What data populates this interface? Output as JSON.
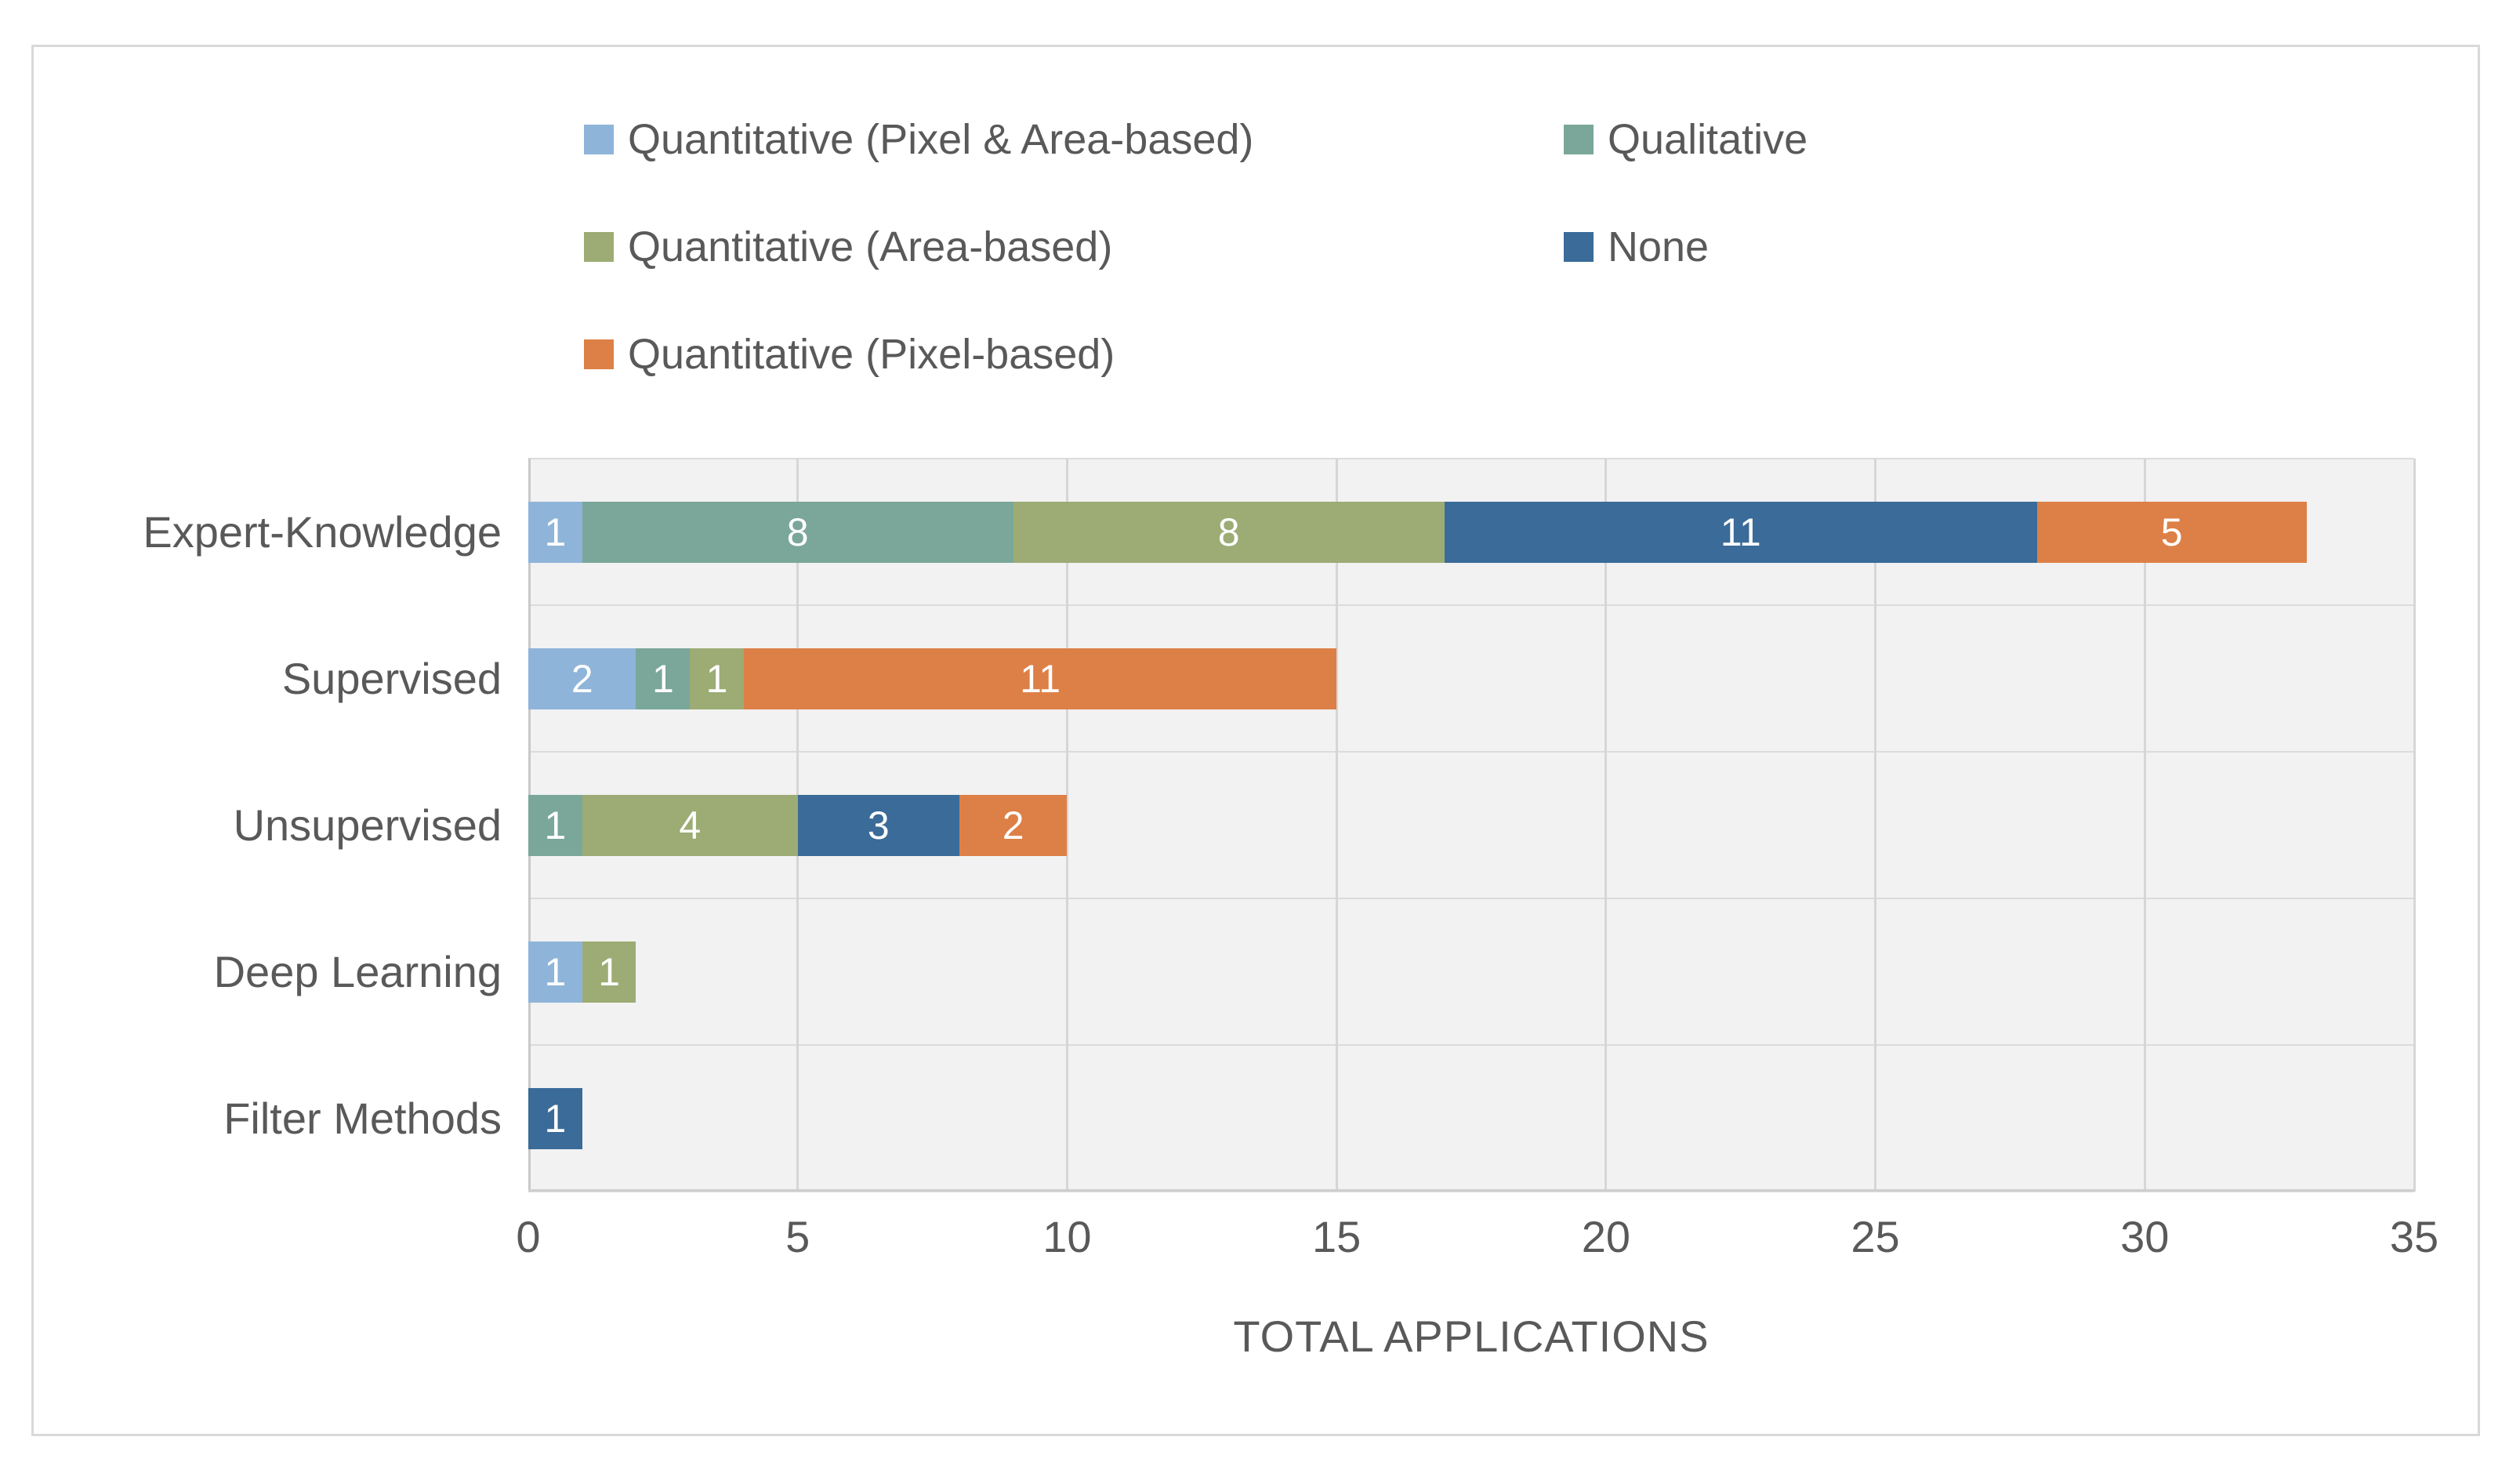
{
  "chart_data": {
    "type": "bar",
    "orientation": "horizontal",
    "stacked": true,
    "title": "",
    "xlabel": "TOTAL APPLICATIONS",
    "ylabel": "",
    "xlim": [
      0,
      35
    ],
    "xticks": [
      0,
      5,
      10,
      15,
      20,
      25,
      30,
      35
    ],
    "grid": true,
    "legend_position": "top",
    "categories": [
      "Expert-Knowledge",
      "Supervised",
      "Unsupervised",
      "Deep Learning",
      "Filter Methods"
    ],
    "series": [
      {
        "name": "Quantitative (Pixel & Area-based)",
        "color": "#8FB4D9",
        "values": [
          1,
          2,
          0,
          1,
          0
        ]
      },
      {
        "name": "Qualitative",
        "color": "#7AA79A",
        "values": [
          8,
          1,
          1,
          0,
          0
        ]
      },
      {
        "name": "Quantitative (Area-based)",
        "color": "#9CAC74",
        "values": [
          8,
          1,
          4,
          1,
          0
        ]
      },
      {
        "name": "None",
        "color": "#3A6B99",
        "values": [
          11,
          0,
          3,
          0,
          1
        ]
      },
      {
        "name": "Quantitative (Pixel-based)",
        "color": "#DD8047",
        "values": [
          5,
          11,
          2,
          0,
          0
        ]
      }
    ],
    "data_labels": "white numbers centered in each nonzero segment"
  },
  "styles": {
    "plot_background": "#F2F2F2",
    "gridline_color": "#D6D6D6",
    "frame_border_color": "#D9D9D9",
    "text_color": "#595959",
    "data_label_color": "#FFFFFF"
  }
}
